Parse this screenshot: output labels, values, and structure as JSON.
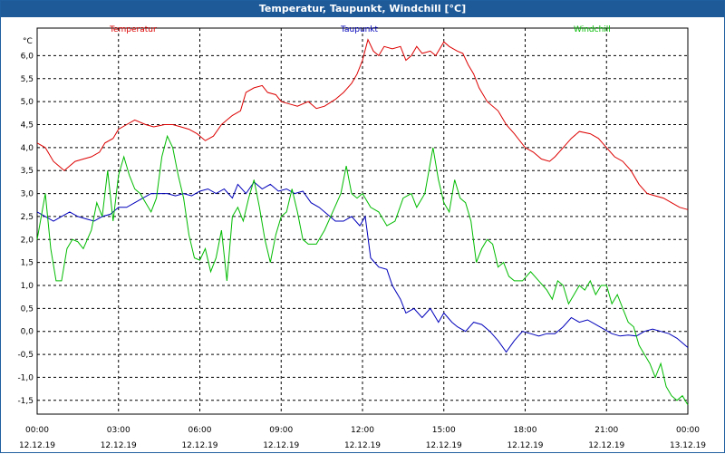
{
  "window": {
    "title": "Temperatur, Taupunkt, Windchill [°C]"
  },
  "chart_data": {
    "type": "line",
    "title": "Temperatur, Taupunkt, Windchill [°C]",
    "ylabel": "°C",
    "xlabel": "",
    "ylim": [
      -1.8,
      6.6
    ],
    "xlim": [
      0,
      24
    ],
    "grid": true,
    "y_ticks": [
      "6,0",
      "5,5",
      "5,0",
      "4,5",
      "4,0",
      "3,5",
      "3,0",
      "2,5",
      "2,0",
      "1,5",
      "1,0",
      "0,5",
      "0,0",
      "-0,5",
      "-1,0",
      "-1,5"
    ],
    "y_tick_values": [
      6.0,
      5.5,
      5.0,
      4.5,
      4.0,
      3.5,
      3.0,
      2.5,
      2.0,
      1.5,
      1.0,
      0.5,
      0.0,
      -0.5,
      -1.0,
      -1.5
    ],
    "x_ticks": [
      {
        "time": "00:00",
        "date": "12.12.19",
        "h": 0
      },
      {
        "time": "03:00",
        "date": "12.12.19",
        "h": 3
      },
      {
        "time": "06:00",
        "date": "12.12.19",
        "h": 6
      },
      {
        "time": "09:00",
        "date": "12.12.19",
        "h": 9
      },
      {
        "time": "12:00",
        "date": "12.12.19",
        "h": 12
      },
      {
        "time": "15:00",
        "date": "12.12.19",
        "h": 15
      },
      {
        "time": "18:00",
        "date": "12.12.19",
        "h": 18
      },
      {
        "time": "21:00",
        "date": "12.12.19",
        "h": 21
      },
      {
        "time": "00:00",
        "date": "13.12.19",
        "h": 24
      }
    ],
    "series": [
      {
        "name": "Temperatur",
        "color": "#dd0000",
        "legend_pos": "top-left",
        "points": [
          [
            0,
            4.1
          ],
          [
            0.3,
            4.0
          ],
          [
            0.6,
            3.7
          ],
          [
            0.8,
            3.6
          ],
          [
            1.0,
            3.5
          ],
          [
            1.2,
            3.6
          ],
          [
            1.4,
            3.7
          ],
          [
            1.7,
            3.75
          ],
          [
            2.0,
            3.8
          ],
          [
            2.3,
            3.9
          ],
          [
            2.5,
            4.1
          ],
          [
            2.8,
            4.2
          ],
          [
            3.0,
            4.4
          ],
          [
            3.3,
            4.5
          ],
          [
            3.6,
            4.6
          ],
          [
            4.0,
            4.5
          ],
          [
            4.3,
            4.45
          ],
          [
            4.7,
            4.5
          ],
          [
            5.0,
            4.5
          ],
          [
            5.3,
            4.45
          ],
          [
            5.6,
            4.4
          ],
          [
            5.9,
            4.3
          ],
          [
            6.2,
            4.15
          ],
          [
            6.5,
            4.25
          ],
          [
            6.8,
            4.5
          ],
          [
            7.0,
            4.6
          ],
          [
            7.2,
            4.7
          ],
          [
            7.5,
            4.8
          ],
          [
            7.7,
            5.2
          ],
          [
            8.0,
            5.3
          ],
          [
            8.3,
            5.35
          ],
          [
            8.5,
            5.2
          ],
          [
            8.8,
            5.15
          ],
          [
            9.0,
            5.0
          ],
          [
            9.3,
            4.95
          ],
          [
            9.6,
            4.9
          ],
          [
            10.0,
            5.0
          ],
          [
            10.3,
            4.85
          ],
          [
            10.6,
            4.9
          ],
          [
            11.0,
            5.05
          ],
          [
            11.3,
            5.2
          ],
          [
            11.6,
            5.4
          ],
          [
            11.8,
            5.6
          ],
          [
            12.0,
            5.9
          ],
          [
            12.2,
            6.35
          ],
          [
            12.4,
            6.1
          ],
          [
            12.6,
            6.0
          ],
          [
            12.8,
            6.2
          ],
          [
            13.1,
            6.15
          ],
          [
            13.4,
            6.2
          ],
          [
            13.6,
            5.9
          ],
          [
            13.8,
            6.0
          ],
          [
            14.0,
            6.2
          ],
          [
            14.2,
            6.05
          ],
          [
            14.5,
            6.1
          ],
          [
            14.7,
            6.0
          ],
          [
            15.0,
            6.3
          ],
          [
            15.2,
            6.2
          ],
          [
            15.5,
            6.1
          ],
          [
            15.7,
            6.05
          ],
          [
            15.9,
            5.8
          ],
          [
            16.1,
            5.6
          ],
          [
            16.3,
            5.3
          ],
          [
            16.6,
            5.0
          ],
          [
            17.0,
            4.8
          ],
          [
            17.3,
            4.5
          ],
          [
            17.6,
            4.3
          ],
          [
            18.0,
            4.0
          ],
          [
            18.3,
            3.9
          ],
          [
            18.6,
            3.75
          ],
          [
            18.9,
            3.7
          ],
          [
            19.1,
            3.8
          ],
          [
            19.4,
            4.0
          ],
          [
            19.7,
            4.2
          ],
          [
            20.0,
            4.35
          ],
          [
            20.4,
            4.3
          ],
          [
            20.7,
            4.2
          ],
          [
            21.0,
            4.0
          ],
          [
            21.3,
            3.8
          ],
          [
            21.6,
            3.7
          ],
          [
            21.9,
            3.5
          ],
          [
            22.2,
            3.2
          ],
          [
            22.5,
            3.0
          ],
          [
            22.8,
            2.95
          ],
          [
            23.1,
            2.9
          ],
          [
            23.4,
            2.8
          ],
          [
            23.7,
            2.7
          ],
          [
            24.0,
            2.65
          ]
        ]
      },
      {
        "name": "Taupunkt",
        "color": "#0000bb",
        "legend_pos": "top-center",
        "points": [
          [
            0,
            2.6
          ],
          [
            0.3,
            2.5
          ],
          [
            0.6,
            2.4
          ],
          [
            0.9,
            2.5
          ],
          [
            1.2,
            2.6
          ],
          [
            1.5,
            2.5
          ],
          [
            1.8,
            2.45
          ],
          [
            2.1,
            2.4
          ],
          [
            2.4,
            2.5
          ],
          [
            2.7,
            2.55
          ],
          [
            3.0,
            2.7
          ],
          [
            3.3,
            2.7
          ],
          [
            3.6,
            2.8
          ],
          [
            3.9,
            2.9
          ],
          [
            4.2,
            3.0
          ],
          [
            4.5,
            3.0
          ],
          [
            4.8,
            3.0
          ],
          [
            5.1,
            2.95
          ],
          [
            5.4,
            3.0
          ],
          [
            5.7,
            2.95
          ],
          [
            6.0,
            3.05
          ],
          [
            6.3,
            3.1
          ],
          [
            6.6,
            3.0
          ],
          [
            6.9,
            3.1
          ],
          [
            7.2,
            2.9
          ],
          [
            7.4,
            3.2
          ],
          [
            7.7,
            3.0
          ],
          [
            8.0,
            3.25
          ],
          [
            8.3,
            3.1
          ],
          [
            8.6,
            3.2
          ],
          [
            8.9,
            3.05
          ],
          [
            9.2,
            3.1
          ],
          [
            9.5,
            3.0
          ],
          [
            9.8,
            3.05
          ],
          [
            10.1,
            2.8
          ],
          [
            10.4,
            2.7
          ],
          [
            10.7,
            2.55
          ],
          [
            11.0,
            2.4
          ],
          [
            11.3,
            2.4
          ],
          [
            11.6,
            2.5
          ],
          [
            11.9,
            2.3
          ],
          [
            12.1,
            2.5
          ],
          [
            12.3,
            1.6
          ],
          [
            12.6,
            1.4
          ],
          [
            12.9,
            1.35
          ],
          [
            13.1,
            1.0
          ],
          [
            13.4,
            0.7
          ],
          [
            13.6,
            0.4
          ],
          [
            13.9,
            0.5
          ],
          [
            14.2,
            0.3
          ],
          [
            14.5,
            0.5
          ],
          [
            14.8,
            0.2
          ],
          [
            15.0,
            0.4
          ],
          [
            15.3,
            0.2
          ],
          [
            15.5,
            0.1
          ],
          [
            15.8,
            0.0
          ],
          [
            16.1,
            0.2
          ],
          [
            16.4,
            0.15
          ],
          [
            16.7,
            0.0
          ],
          [
            17.0,
            -0.2
          ],
          [
            17.3,
            -0.45
          ],
          [
            17.6,
            -0.2
          ],
          [
            17.9,
            0.0
          ],
          [
            18.2,
            -0.05
          ],
          [
            18.5,
            -0.1
          ],
          [
            18.8,
            -0.05
          ],
          [
            19.1,
            -0.05
          ],
          [
            19.4,
            0.1
          ],
          [
            19.7,
            0.3
          ],
          [
            20.0,
            0.2
          ],
          [
            20.3,
            0.25
          ],
          [
            20.6,
            0.15
          ],
          [
            20.9,
            0.05
          ],
          [
            21.2,
            -0.05
          ],
          [
            21.5,
            -0.1
          ],
          [
            21.8,
            -0.08
          ],
          [
            22.1,
            -0.1
          ],
          [
            22.4,
            0.0
          ],
          [
            22.7,
            0.05
          ],
          [
            23.0,
            0.0
          ],
          [
            23.3,
            -0.05
          ],
          [
            23.6,
            -0.15
          ],
          [
            24.0,
            -0.35
          ]
        ]
      },
      {
        "name": "Windchill",
        "color": "#00bb00",
        "legend_pos": "top-right",
        "points": [
          [
            0,
            2.0
          ],
          [
            0.3,
            3.0
          ],
          [
            0.5,
            1.8
          ],
          [
            0.7,
            1.1
          ],
          [
            0.9,
            1.1
          ],
          [
            1.1,
            1.8
          ],
          [
            1.3,
            2.0
          ],
          [
            1.5,
            1.95
          ],
          [
            1.7,
            1.8
          ],
          [
            2.0,
            2.2
          ],
          [
            2.2,
            2.8
          ],
          [
            2.4,
            2.5
          ],
          [
            2.6,
            3.5
          ],
          [
            2.8,
            2.4
          ],
          [
            3.0,
            3.4
          ],
          [
            3.2,
            3.8
          ],
          [
            3.4,
            3.4
          ],
          [
            3.6,
            3.1
          ],
          [
            3.8,
            3.0
          ],
          [
            4.0,
            2.8
          ],
          [
            4.2,
            2.6
          ],
          [
            4.4,
            2.9
          ],
          [
            4.6,
            3.8
          ],
          [
            4.8,
            4.25
          ],
          [
            5.0,
            4.0
          ],
          [
            5.2,
            3.4
          ],
          [
            5.4,
            2.9
          ],
          [
            5.6,
            2.1
          ],
          [
            5.8,
            1.6
          ],
          [
            6.0,
            1.55
          ],
          [
            6.2,
            1.8
          ],
          [
            6.4,
            1.3
          ],
          [
            6.6,
            1.6
          ],
          [
            6.8,
            2.2
          ],
          [
            7.0,
            1.1
          ],
          [
            7.2,
            2.5
          ],
          [
            7.4,
            2.7
          ],
          [
            7.6,
            2.4
          ],
          [
            7.8,
            2.9
          ],
          [
            8.0,
            3.3
          ],
          [
            8.2,
            2.7
          ],
          [
            8.4,
            2.0
          ],
          [
            8.6,
            1.5
          ],
          [
            8.8,
            2.1
          ],
          [
            9.0,
            2.5
          ],
          [
            9.2,
            2.6
          ],
          [
            9.4,
            3.1
          ],
          [
            9.6,
            2.6
          ],
          [
            9.8,
            2.0
          ],
          [
            10.0,
            1.9
          ],
          [
            10.3,
            1.9
          ],
          [
            10.6,
            2.2
          ],
          [
            10.9,
            2.6
          ],
          [
            11.2,
            3.0
          ],
          [
            11.4,
            3.6
          ],
          [
            11.6,
            3.0
          ],
          [
            11.8,
            2.9
          ],
          [
            12.0,
            3.0
          ],
          [
            12.3,
            2.7
          ],
          [
            12.6,
            2.6
          ],
          [
            12.9,
            2.3
          ],
          [
            13.2,
            2.4
          ],
          [
            13.5,
            2.9
          ],
          [
            13.8,
            3.0
          ],
          [
            14.0,
            2.7
          ],
          [
            14.3,
            3.0
          ],
          [
            14.6,
            4.0
          ],
          [
            14.8,
            3.3
          ],
          [
            15.0,
            2.8
          ],
          [
            15.2,
            2.6
          ],
          [
            15.4,
            3.3
          ],
          [
            15.6,
            2.9
          ],
          [
            15.8,
            2.8
          ],
          [
            16.0,
            2.4
          ],
          [
            16.2,
            1.5
          ],
          [
            16.4,
            1.8
          ],
          [
            16.6,
            2.0
          ],
          [
            16.8,
            1.9
          ],
          [
            17.0,
            1.4
          ],
          [
            17.2,
            1.5
          ],
          [
            17.4,
            1.2
          ],
          [
            17.6,
            1.1
          ],
          [
            17.9,
            1.1
          ],
          [
            18.2,
            1.3
          ],
          [
            18.5,
            1.1
          ],
          [
            18.8,
            0.9
          ],
          [
            19.0,
            0.7
          ],
          [
            19.2,
            1.1
          ],
          [
            19.4,
            1.0
          ],
          [
            19.6,
            0.6
          ],
          [
            19.8,
            0.8
          ],
          [
            20.0,
            1.0
          ],
          [
            20.2,
            0.9
          ],
          [
            20.4,
            1.1
          ],
          [
            20.6,
            0.8
          ],
          [
            20.8,
            1.0
          ],
          [
            21.0,
            1.0
          ],
          [
            21.2,
            0.6
          ],
          [
            21.4,
            0.8
          ],
          [
            21.6,
            0.5
          ],
          [
            21.8,
            0.2
          ],
          [
            22.0,
            0.1
          ],
          [
            22.2,
            -0.3
          ],
          [
            22.4,
            -0.5
          ],
          [
            22.6,
            -0.7
          ],
          [
            22.8,
            -1.0
          ],
          [
            23.0,
            -0.7
          ],
          [
            23.2,
            -1.2
          ],
          [
            23.4,
            -1.4
          ],
          [
            23.6,
            -1.5
          ],
          [
            23.8,
            -1.4
          ],
          [
            24.0,
            -1.6
          ]
        ]
      }
    ]
  }
}
